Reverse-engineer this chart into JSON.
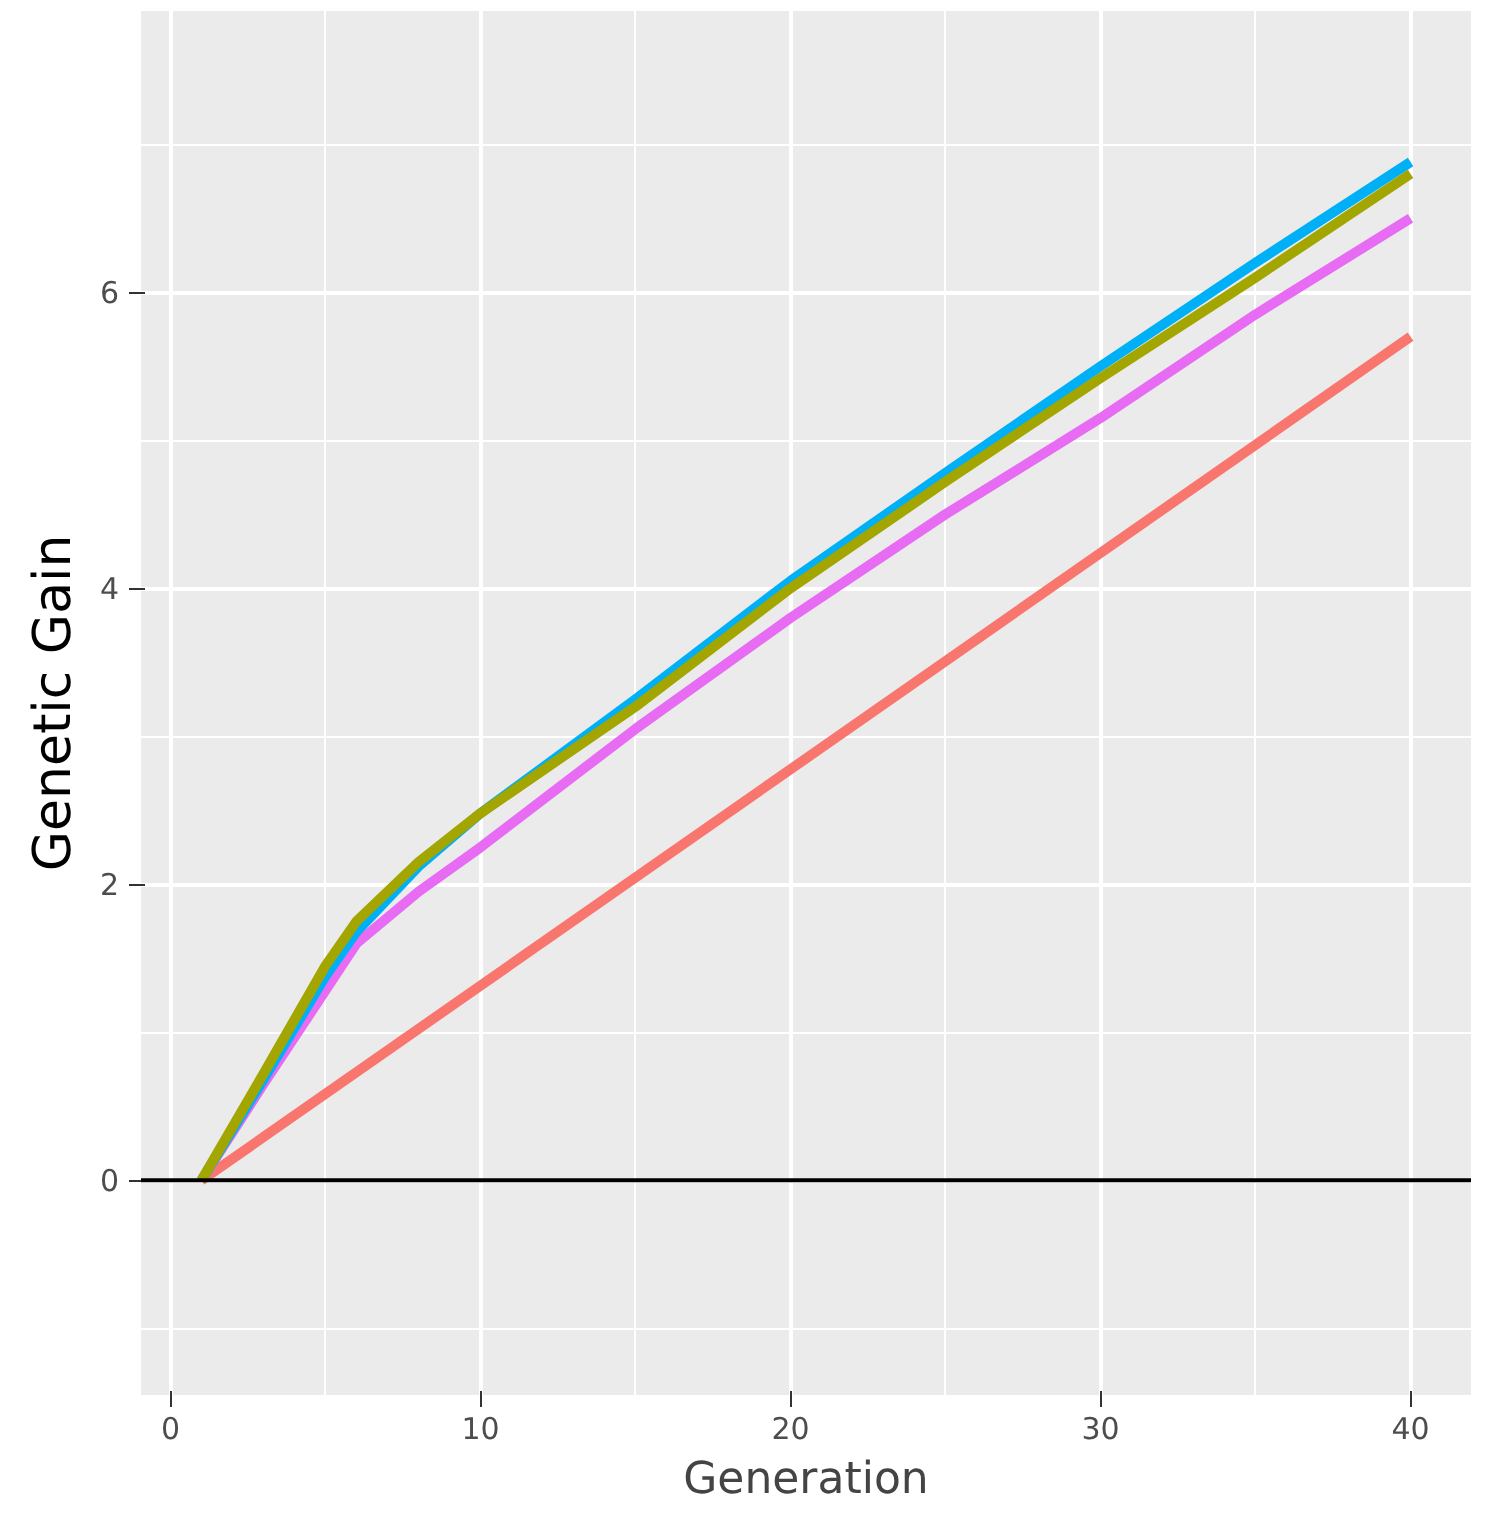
{
  "chart_data": {
    "type": "line",
    "xlabel": "Generation",
    "ylabel": "Genetic Gain",
    "xlim": [
      -0.95,
      41.95
    ],
    "ylim": [
      -1.45,
      7.9
    ],
    "xticks": [
      0,
      10,
      20,
      30,
      40
    ],
    "yticks": [
      0,
      2,
      4,
      6
    ],
    "grid": true,
    "line_style": "solid",
    "marker": "none",
    "ref_lines": [
      {
        "axis": "y",
        "value": 0,
        "color": "#000000"
      }
    ],
    "series": [
      {
        "color": "#f8766d",
        "x": [
          1,
          40
        ],
        "values": [
          0,
          5.7
        ]
      },
      {
        "color": "#e76bf3",
        "x": [
          1,
          3,
          6,
          8,
          10,
          15,
          20,
          25,
          30,
          35,
          40
        ],
        "values": [
          0,
          0.65,
          1.6,
          1.95,
          2.25,
          3.05,
          3.8,
          4.5,
          5.15,
          5.85,
          6.5
        ]
      },
      {
        "color": "#00b0f6",
        "x": [
          1,
          3,
          5,
          6,
          8,
          10,
          15,
          20,
          25,
          30,
          35,
          40
        ],
        "values": [
          0,
          0.68,
          1.38,
          1.68,
          2.12,
          2.48,
          3.25,
          4.05,
          4.78,
          5.5,
          6.2,
          6.88
        ]
      },
      {
        "color": "#a3a500",
        "x": [
          1,
          3,
          5,
          6,
          8,
          10,
          15,
          20,
          25,
          30,
          35,
          40
        ],
        "values": [
          0,
          0.72,
          1.45,
          1.75,
          2.15,
          2.48,
          3.2,
          4.0,
          4.72,
          5.42,
          6.1,
          6.8
        ]
      }
    ]
  }
}
